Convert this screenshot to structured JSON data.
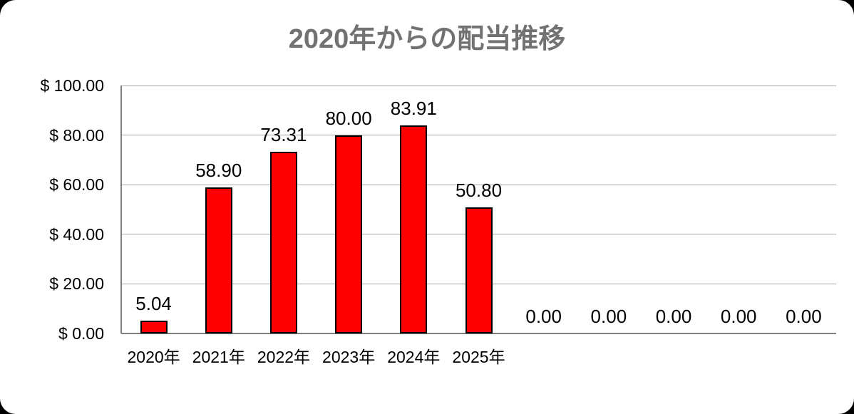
{
  "chart_data": {
    "type": "bar",
    "title": "2020年からの配当推移",
    "categories": [
      "2020年",
      "2021年",
      "2022年",
      "2023年",
      "2024年",
      "2025年",
      "",
      "",
      "",
      "",
      ""
    ],
    "values": [
      5.04,
      58.9,
      73.31,
      80.0,
      83.91,
      50.8,
      0,
      0,
      0,
      0,
      0
    ],
    "data_labels": [
      "5.04",
      "58.90",
      "73.31",
      "80.00",
      "83.91",
      "50.80",
      "0.00",
      "0.00",
      "0.00",
      "0.00",
      "0.00"
    ],
    "xlabel": "",
    "ylabel": "",
    "y_axis": {
      "range": [
        0,
        100
      ],
      "ticks": [
        {
          "value": 100,
          "label": "$ 100.00"
        },
        {
          "value": 80,
          "label": "$ 80.00"
        },
        {
          "value": 60,
          "label": "$ 60.00"
        },
        {
          "value": 40,
          "label": "$ 40.00"
        },
        {
          "value": 20,
          "label": "$ 20.00"
        },
        {
          "value": 0,
          "label": "$ 0.00"
        }
      ]
    },
    "grid": true,
    "legend": "none",
    "colors": {
      "bar_fill": "#FF0000",
      "bar_border": "#000000",
      "gridline": "#A6A6A6",
      "axis": "#808080",
      "title": "#727272",
      "label_text": "#000000"
    }
  }
}
